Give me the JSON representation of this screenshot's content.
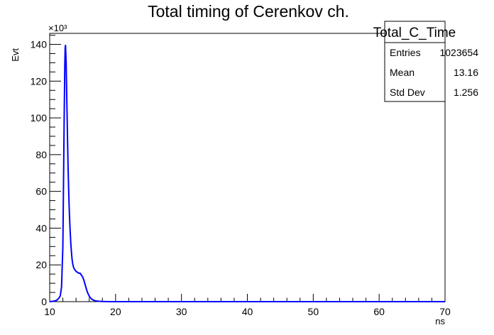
{
  "chart_data": {
    "type": "line",
    "title": "Total timing of Cerenkov ch.",
    "xlabel": "ns",
    "ylabel": "Evt",
    "y_multiplier": "×10³",
    "xlim": [
      10,
      70
    ],
    "ylim": [
      0,
      146
    ],
    "x_ticks": [
      10,
      20,
      30,
      40,
      50,
      60,
      70
    ],
    "y_ticks": [
      0,
      20,
      40,
      60,
      80,
      100,
      120,
      140
    ],
    "grid": false,
    "line_color": "#0000ff",
    "series": [
      {
        "x": [
          10,
          10.5,
          11.0,
          11.3,
          11.6,
          11.8,
          12.0,
          12.1,
          12.2,
          12.3,
          12.35,
          12.4,
          12.5,
          12.6,
          12.7,
          12.8,
          12.9,
          13.0,
          13.1,
          13.2,
          13.3,
          13.4,
          13.5,
          13.6,
          13.7,
          13.8,
          13.9,
          14.0,
          14.2,
          14.4,
          14.6,
          14.8,
          15.0,
          15.2,
          15.4,
          15.6,
          15.8,
          16.0,
          16.2,
          16.4,
          16.6,
          16.8,
          17.0,
          17.5,
          18.0,
          18.5,
          19.0,
          20,
          25,
          30,
          40,
          50,
          60,
          70
        ],
        "y": [
          0,
          0.2,
          0.6,
          1.5,
          3,
          8,
          30,
          65,
          100,
          130,
          138,
          139.5,
          130,
          110,
          90,
          72,
          58,
          47,
          39,
          32,
          27,
          23,
          20.5,
          19,
          18,
          17.5,
          17,
          16.5,
          16,
          15.5,
          15.5,
          14.5,
          13.5,
          11.5,
          9,
          6.5,
          4.5,
          3,
          2,
          1.3,
          0.9,
          0.6,
          0.4,
          0.2,
          0.1,
          0.05,
          0.02,
          0,
          0,
          0,
          0,
          0,
          0,
          0
        ]
      }
    ]
  },
  "stats_box": {
    "title": "Total_C_Time",
    "rows": [
      {
        "label": "Entries",
        "value": "1023654"
      },
      {
        "label": "Mean",
        "value": "13.16"
      },
      {
        "label": "Std Dev",
        "value": "1.256"
      }
    ]
  }
}
